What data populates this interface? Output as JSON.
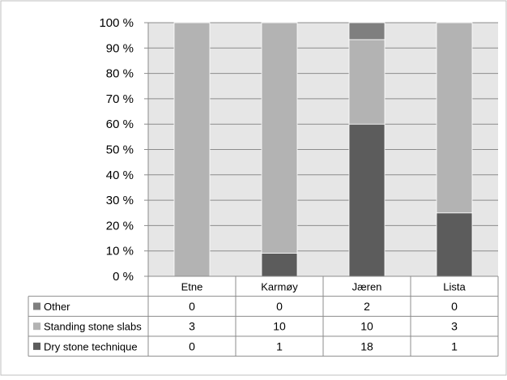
{
  "chart_data": {
    "type": "bar",
    "stacked": true,
    "percent_stacked": true,
    "categories": [
      "Etne",
      "Karmøy",
      "Jæren",
      "Lista"
    ],
    "series": [
      {
        "name": "Dry stone technique",
        "values": [
          0,
          1,
          18,
          1
        ],
        "color": "#5c5c5c"
      },
      {
        "name": "Standing stone slabs",
        "values": [
          3,
          10,
          10,
          3
        ],
        "color": "#b3b3b3"
      },
      {
        "name": "Other",
        "values": [
          0,
          0,
          2,
          0
        ],
        "color": "#7f7f7f"
      }
    ],
    "table_row_order": [
      "Other",
      "Standing stone slabs",
      "Dry stone technique"
    ],
    "y_ticks": [
      "0 %",
      "10 %",
      "20 %",
      "30 %",
      "40 %",
      "50 %",
      "60 %",
      "70 %",
      "80 %",
      "90 %",
      "100 %"
    ],
    "ylim": [
      0,
      100
    ],
    "grid": true,
    "plot_background": "#e6e6e6",
    "legend": "data table"
  }
}
